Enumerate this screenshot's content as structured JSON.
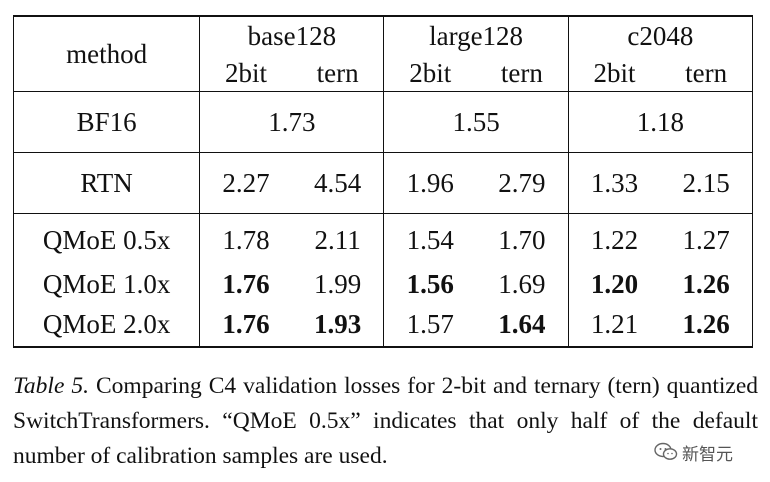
{
  "table": {
    "method_header": "method",
    "groups": [
      {
        "name": "base128",
        "sub": [
          "2bit",
          "tern"
        ]
      },
      {
        "name": "large128",
        "sub": [
          "2bit",
          "tern"
        ]
      },
      {
        "name": "c2048",
        "sub": [
          "2bit",
          "tern"
        ]
      }
    ],
    "rows": {
      "bf16": {
        "method": "BF16",
        "values": [
          "1.73",
          "1.55",
          "1.18"
        ]
      },
      "rtn": {
        "method": "RTN",
        "values": [
          "2.27",
          "4.54",
          "1.96",
          "2.79",
          "1.33",
          "2.15"
        ]
      },
      "qmoe": [
        {
          "method": "QMoE 0.5x",
          "values": [
            "1.78",
            "2.11",
            "1.54",
            "1.70",
            "1.22",
            "1.27"
          ]
        },
        {
          "method": "QMoE 1.0x",
          "values": [
            "1.76",
            "1.99",
            "1.56",
            "1.69",
            "1.20",
            "1.26"
          ]
        },
        {
          "method": "QMoE 2.0x",
          "values": [
            "1.76",
            "1.93",
            "1.57",
            "1.64",
            "1.21",
            "1.26"
          ]
        }
      ]
    }
  },
  "caption": {
    "label": "Table 5.",
    "text": "Comparing C4 validation losses for 2-bit and ternary (tern) quantized SwitchTransformers. “QMoE 0.5x” indicates that only half of the default number of calibration samples are used."
  },
  "watermark": {
    "text": "新智元",
    "icon": "wechat-logo-icon"
  }
}
